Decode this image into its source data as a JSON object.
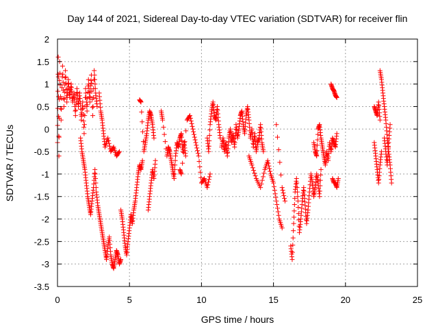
{
  "chart_data": {
    "type": "scatter",
    "title": "Day 144 of 2021, Sidereal Day-to-day VTEC variation (SDTVAR) for receiver flin",
    "xlabel": "GPS time / hours",
    "ylabel": "SDTVAR / TECUs",
    "xlim": [
      0,
      25
    ],
    "ylim": [
      -3.5,
      2
    ],
    "xticks": [
      0,
      5,
      10,
      15,
      20,
      25
    ],
    "xtick_labels": [
      "0",
      "5",
      "10",
      "15",
      "20",
      "25"
    ],
    "yticks": [
      2,
      1.5,
      1,
      0.5,
      0,
      -0.5,
      -1,
      -1.5,
      -2,
      -2.5,
      -3,
      -3.5
    ],
    "ytick_labels": [
      "2",
      "1.5",
      "1",
      "0.5",
      "0",
      "-0.5",
      "-1",
      "-1.5",
      "-2",
      "-2.5",
      "-3",
      "-3.5"
    ],
    "grid": true,
    "marker": "+",
    "series": [
      {
        "name": "SDTVAR",
        "color": "#ff0000",
        "segments": [
          [
            [
              0.0,
              -0.3
            ],
            [
              0.05,
              1.6
            ],
            [
              0.1,
              -0.6
            ],
            [
              0.15,
              1.5
            ],
            [
              0.25,
              0.2
            ],
            [
              0.35,
              1.4
            ],
            [
              0.45,
              0.5
            ],
            [
              0.55,
              1.3
            ],
            [
              0.65,
              0.6
            ],
            [
              0.75,
              1.1
            ],
            [
              0.85,
              0.7
            ],
            [
              0.95,
              1.0
            ],
            [
              1.05,
              0.6
            ],
            [
              1.15,
              0.8
            ],
            [
              1.25,
              0.3
            ],
            [
              1.35,
              0.9
            ],
            [
              1.45,
              0.5
            ],
            [
              1.55,
              0.8
            ],
            [
              1.65,
              0.2
            ],
            [
              1.75,
              0.6
            ],
            [
              1.85,
              -0.1
            ],
            [
              1.95,
              0.9
            ],
            [
              2.05,
              0.4
            ],
            [
              2.15,
              1.1
            ],
            [
              2.25,
              0.6
            ],
            [
              2.35,
              1.2
            ],
            [
              2.45,
              0.3
            ],
            [
              2.55,
              1.3
            ],
            [
              2.65,
              0.8
            ],
            [
              2.75,
              0.5
            ]
          ],
          [
            [
              1.6,
              -0.2
            ],
            [
              1.7,
              -0.5
            ],
            [
              1.8,
              -0.7
            ],
            [
              1.9,
              -0.9
            ],
            [
              2.0,
              -1.2
            ],
            [
              2.1,
              -1.5
            ],
            [
              2.2,
              -1.7
            ],
            [
              2.3,
              -1.9
            ],
            [
              2.4,
              -1.6
            ],
            [
              2.5,
              -1.3
            ],
            [
              2.6,
              -0.9
            ],
            [
              2.7,
              -1.4
            ],
            [
              2.8,
              -1.7
            ],
            [
              2.9,
              -1.9
            ],
            [
              3.0,
              -2.1
            ],
            [
              3.1,
              -2.3
            ],
            [
              3.2,
              -2.5
            ],
            [
              3.3,
              -2.7
            ],
            [
              3.4,
              -2.9
            ],
            [
              3.5,
              -2.6
            ],
            [
              3.6,
              -2.4
            ],
            [
              3.7,
              -2.8
            ],
            [
              3.8,
              -3.0
            ],
            [
              3.9,
              -3.1
            ],
            [
              4.0,
              -2.9
            ],
            [
              4.1,
              -2.7
            ],
            [
              4.2,
              -2.8
            ],
            [
              4.3,
              -3.0
            ],
            [
              4.4,
              -2.9
            ]
          ],
          [
            [
              2.9,
              0.8
            ],
            [
              3.0,
              0.4
            ],
            [
              3.1,
              0.2
            ],
            [
              3.2,
              -0.1
            ],
            [
              3.3,
              -0.4
            ],
            [
              3.5,
              -0.2
            ],
            [
              3.7,
              -0.5
            ],
            [
              3.9,
              -0.4
            ],
            [
              4.1,
              -0.6
            ],
            [
              4.3,
              -0.5
            ]
          ],
          [
            [
              4.4,
              -1.8
            ],
            [
              4.5,
              -2.0
            ],
            [
              4.6,
              -2.3
            ],
            [
              4.7,
              -2.6
            ],
            [
              4.8,
              -2.8
            ],
            [
              4.9,
              -2.5
            ],
            [
              5.0,
              -2.2
            ],
            [
              5.1,
              -1.9
            ],
            [
              5.2,
              -2.1
            ],
            [
              5.3,
              -1.8
            ],
            [
              5.4,
              -1.6
            ],
            [
              5.5,
              -1.3
            ],
            [
              5.6,
              -1.0
            ],
            [
              5.7,
              -0.8
            ],
            [
              5.8,
              -0.9
            ],
            [
              5.9,
              -0.7
            ]
          ],
          [
            [
              5.7,
              0.65
            ],
            [
              5.8,
              0.6
            ],
            [
              6.0,
              -0.5
            ],
            [
              6.1,
              -0.3
            ],
            [
              6.2,
              -0.1
            ],
            [
              6.3,
              0.2
            ],
            [
              6.4,
              0.4
            ],
            [
              6.5,
              0.3
            ],
            [
              6.6,
              0.1
            ],
            [
              6.7,
              -0.2
            ]
          ],
          [
            [
              6.3,
              -1.8
            ],
            [
              6.4,
              -1.5
            ],
            [
              6.5,
              -1.2
            ],
            [
              6.6,
              -0.9
            ],
            [
              6.7,
              -1.1
            ],
            [
              6.8,
              -0.7
            ]
          ],
          [
            [
              7.2,
              0.4
            ],
            [
              7.3,
              0.2
            ],
            [
              7.6,
              -0.6
            ],
            [
              7.7,
              -0.4
            ],
            [
              7.8,
              -0.5
            ],
            [
              7.9,
              -0.7
            ],
            [
              8.0,
              -0.9
            ],
            [
              8.1,
              -1.1
            ],
            [
              8.2,
              -0.6
            ],
            [
              8.3,
              -0.3
            ],
            [
              8.4,
              -0.4
            ],
            [
              8.5,
              -0.2
            ],
            [
              8.6,
              -0.1
            ],
            [
              8.7,
              -0.5
            ],
            [
              8.8,
              -0.3
            ],
            [
              8.9,
              -0.6
            ]
          ],
          [
            [
              8.5,
              -0.9
            ],
            [
              8.6,
              -1.0
            ],
            [
              9.0,
              0.2
            ],
            [
              9.2,
              0.3
            ],
            [
              9.4,
              0.0
            ],
            [
              9.6,
              -0.3
            ],
            [
              9.8,
              -0.6
            ],
            [
              10.0,
              -1.2
            ],
            [
              10.2,
              -1.1
            ],
            [
              10.4,
              -1.3
            ],
            [
              10.6,
              -1.0
            ]
          ],
          [
            [
              10.4,
              -0.2
            ],
            [
              10.5,
              -0.5
            ],
            [
              10.6,
              0.1
            ],
            [
              10.7,
              0.4
            ],
            [
              10.8,
              0.6
            ],
            [
              10.9,
              0.3
            ],
            [
              11.0,
              0.2
            ],
            [
              11.1,
              0.5
            ],
            [
              11.2,
              0.1
            ],
            [
              11.3,
              -0.2
            ]
          ],
          [
            [
              11.4,
              -0.4
            ],
            [
              11.5,
              -0.2
            ],
            [
              11.6,
              -0.5
            ],
            [
              11.7,
              -0.3
            ],
            [
              11.8,
              -0.6
            ],
            [
              11.9,
              -0.2
            ],
            [
              12.0,
              0.0
            ],
            [
              12.1,
              -0.3
            ],
            [
              12.2,
              -0.1
            ],
            [
              12.3,
              -0.4
            ],
            [
              12.4,
              0.1
            ],
            [
              12.5,
              -0.2
            ],
            [
              12.6,
              0.0
            ],
            [
              12.7,
              0.3
            ],
            [
              12.8,
              0.4
            ],
            [
              12.9,
              0.1
            ],
            [
              13.0,
              -0.1
            ],
            [
              13.1,
              0.3
            ],
            [
              13.2,
              0.5
            ],
            [
              13.3,
              0.2
            ],
            [
              13.4,
              -0.2
            ],
            [
              13.5,
              0.0
            ],
            [
              13.6,
              -0.4
            ],
            [
              13.7,
              -0.1
            ],
            [
              13.8,
              -0.5
            ],
            [
              13.9,
              -0.3
            ],
            [
              14.0,
              -0.2
            ],
            [
              14.1,
              0.1
            ],
            [
              14.2,
              -0.3
            ],
            [
              14.3,
              -0.5
            ]
          ],
          [
            [
              13.3,
              -0.6
            ],
            [
              13.5,
              -0.8
            ],
            [
              13.8,
              -1.1
            ],
            [
              14.1,
              -1.3
            ],
            [
              14.4,
              -0.9
            ],
            [
              14.6,
              -0.7
            ],
            [
              14.8,
              -1.0
            ],
            [
              15.0,
              -1.2
            ],
            [
              15.2,
              -1.6
            ],
            [
              15.4,
              -2.0
            ],
            [
              15.6,
              -2.2
            ]
          ],
          [
            [
              15.2,
              0.1
            ],
            [
              15.6,
              -1.3
            ],
            [
              15.8,
              -1.6
            ]
          ],
          [
            [
              16.2,
              -2.6
            ],
            [
              16.3,
              -2.9
            ],
            [
              16.4,
              -2.1
            ],
            [
              16.5,
              -1.4
            ],
            [
              16.6,
              -1.1
            ],
            [
              16.7,
              -1.6
            ],
            [
              16.8,
              -2.3
            ],
            [
              16.9,
              -2.0
            ],
            [
              17.0,
              -1.6
            ],
            [
              17.1,
              -1.3
            ],
            [
              17.2,
              -1.7
            ],
            [
              17.3,
              -2.1
            ],
            [
              17.4,
              -1.8
            ],
            [
              17.5,
              -1.4
            ],
            [
              17.6,
              -1.0
            ],
            [
              17.7,
              -1.2
            ],
            [
              17.8,
              -1.5
            ],
            [
              17.9,
              -1.3
            ],
            [
              18.0,
              -1.0
            ],
            [
              18.1,
              -1.2
            ],
            [
              18.2,
              -1.5
            ],
            [
              18.3,
              -0.9
            ]
          ],
          [
            [
              17.8,
              -0.3
            ],
            [
              17.9,
              -0.5
            ],
            [
              18.0,
              -0.6
            ],
            [
              18.1,
              0.0
            ],
            [
              18.2,
              0.1
            ],
            [
              18.3,
              -0.2
            ],
            [
              18.4,
              -0.4
            ],
            [
              18.5,
              -0.6
            ],
            [
              18.6,
              -0.8
            ],
            [
              18.7,
              -0.5
            ],
            [
              18.8,
              -0.7
            ],
            [
              18.9,
              -0.3
            ],
            [
              19.0,
              -0.5
            ],
            [
              19.1,
              -0.2
            ],
            [
              19.2,
              -0.3
            ],
            [
              19.3,
              -0.4
            ],
            [
              19.4,
              -0.1
            ]
          ],
          [
            [
              19.1,
              -1.1
            ],
            [
              19.2,
              -1.2
            ],
            [
              19.3,
              -1.2
            ],
            [
              19.4,
              -1.3
            ],
            [
              19.5,
              -1.1
            ]
          ],
          [
            [
              19.0,
              1.0
            ],
            [
              19.1,
              0.9
            ],
            [
              19.2,
              0.85
            ],
            [
              19.3,
              0.75
            ],
            [
              19.4,
              0.7
            ]
          ],
          [
            [
              22.0,
              -0.3
            ],
            [
              22.1,
              -0.6
            ],
            [
              22.2,
              -0.9
            ],
            [
              22.3,
              -1.2
            ],
            [
              22.4,
              -0.8
            ],
            [
              22.5,
              -0.5
            ]
          ],
          [
            [
              22.0,
              0.5
            ],
            [
              22.1,
              0.4
            ],
            [
              22.2,
              0.3
            ],
            [
              22.3,
              0.6
            ],
            [
              22.4,
              0.2
            ]
          ],
          [
            [
              22.4,
              1.3
            ],
            [
              22.5,
              1.1
            ],
            [
              22.6,
              0.8
            ],
            [
              22.7,
              0.5
            ],
            [
              22.8,
              0.2
            ],
            [
              22.9,
              -0.2
            ],
            [
              23.0,
              -0.5
            ],
            [
              23.1,
              -0.8
            ],
            [
              23.2,
              -1.2
            ]
          ],
          [
            [
              22.7,
              -0.2
            ],
            [
              22.8,
              -0.5
            ],
            [
              22.9,
              -0.8
            ],
            [
              23.0,
              -0.3
            ],
            [
              23.1,
              0.1
            ]
          ]
        ]
      }
    ]
  }
}
